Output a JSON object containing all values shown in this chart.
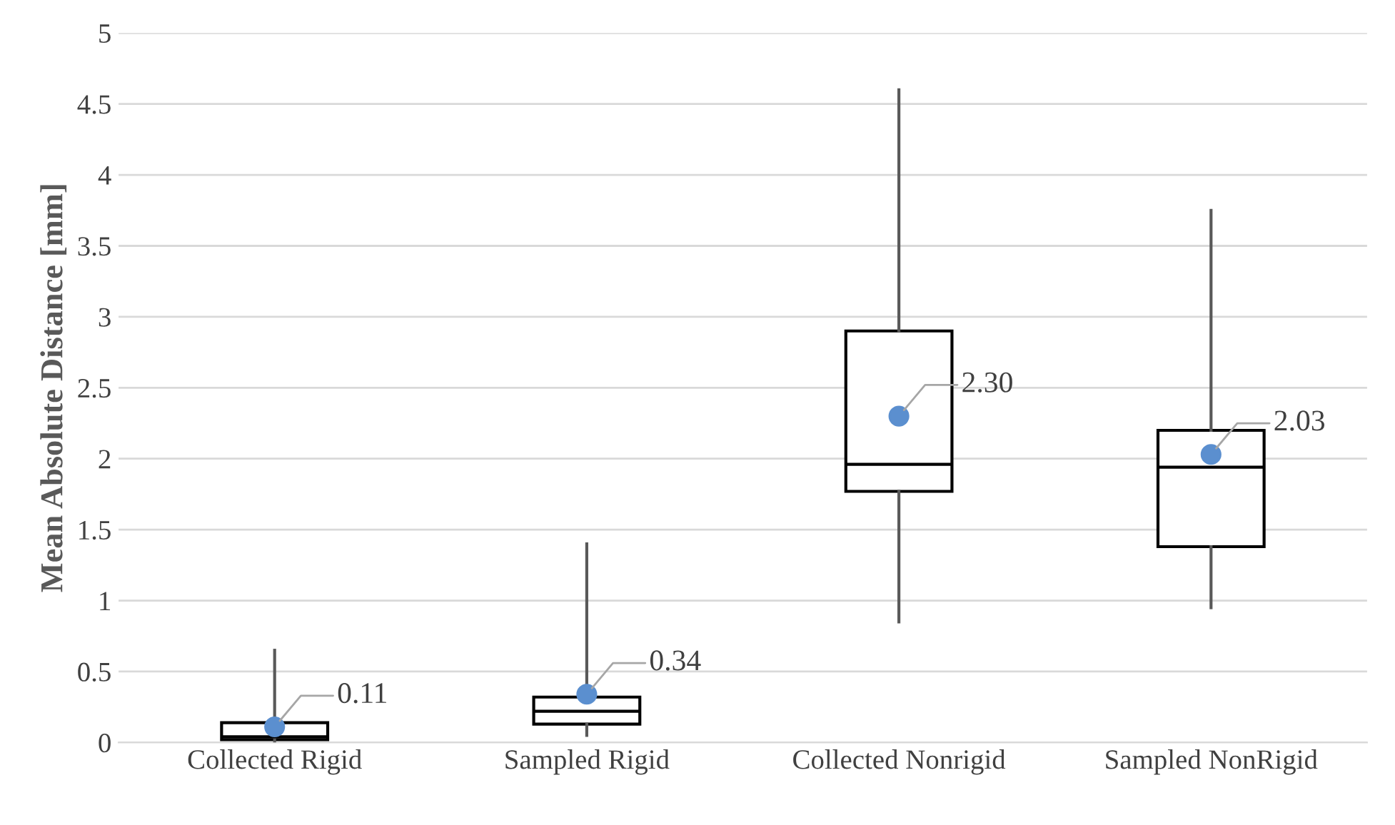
{
  "chart_data": {
    "type": "box",
    "ylabel": "Mean Absolute Distance [mm]",
    "categories": [
      "Collected Rigid",
      "Sampled Rigid",
      "Collected Nonrigid",
      "Sampled NonRigid"
    ],
    "boxes": [
      {
        "low": 0.01,
        "q1": 0.02,
        "median": 0.04,
        "q3": 0.14,
        "high": 0.65
      },
      {
        "low": 0.05,
        "q1": 0.13,
        "median": 0.22,
        "q3": 0.32,
        "high": 1.4
      },
      {
        "low": 0.85,
        "q1": 1.77,
        "median": 1.96,
        "q3": 2.9,
        "high": 4.6
      },
      {
        "low": 0.95,
        "q1": 1.38,
        "median": 1.94,
        "q3": 2.2,
        "high": 3.75
      }
    ],
    "series": [
      {
        "type": "scatter",
        "x": [
          "Collected Rigid",
          "Sampled Rigid",
          "Collected Nonrigid",
          "Sampled NonRigid"
        ],
        "values": [
          0.11,
          0.34,
          2.3,
          2.03
        ],
        "value_labels": [
          "0.11",
          "0.34",
          "2.30",
          "2.03"
        ],
        "color": "#5b8fcf",
        "marker": "circle"
      }
    ],
    "ylim": [
      0,
      5
    ],
    "yticks": [
      0,
      0.5,
      1,
      1.5,
      2,
      2.5,
      3,
      3.5,
      4,
      4.5,
      5
    ],
    "grid": "y",
    "legend": false
  }
}
